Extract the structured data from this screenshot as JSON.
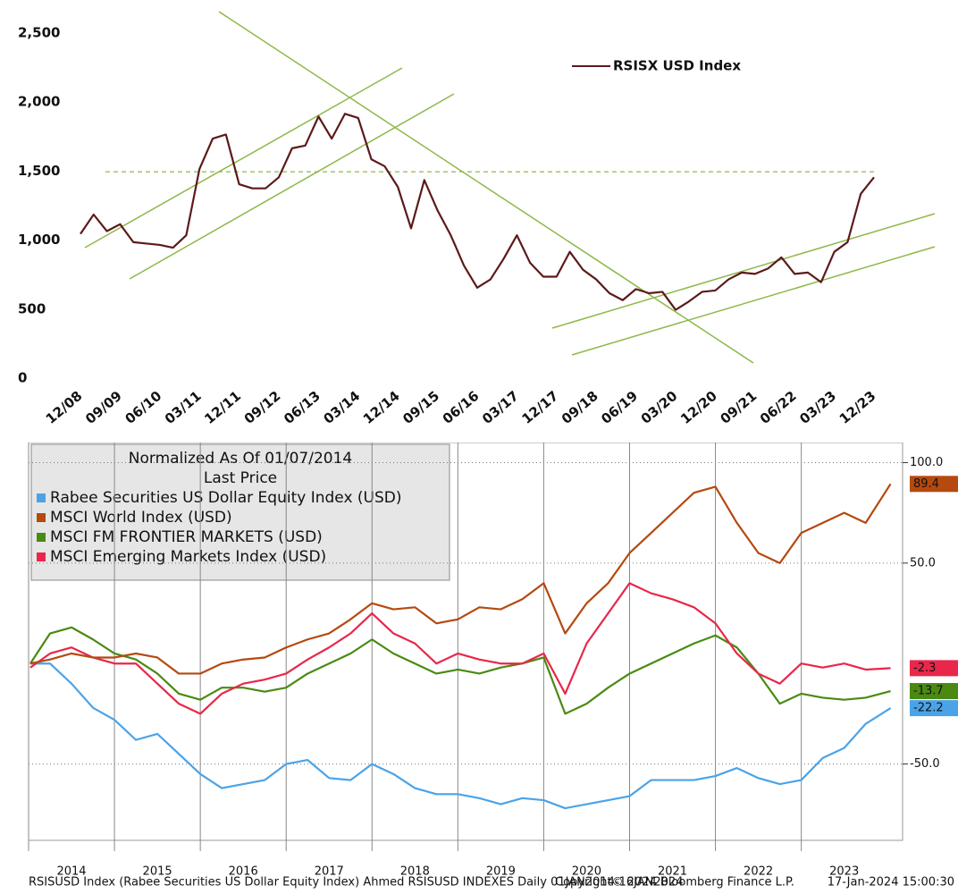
{
  "chart_data": [
    {
      "type": "line",
      "series_name": "RSISX USD Index",
      "color": "#5c1a1a",
      "x": [
        "12/08",
        null,
        null,
        "09/09",
        null,
        null,
        "06/10",
        null,
        null,
        "03/11",
        null,
        null,
        "12/11",
        null,
        null,
        "09/12",
        null,
        null,
        "06/13",
        null,
        null,
        "03/14",
        null,
        null,
        "12/14",
        null,
        null,
        "09/15",
        null,
        null,
        "06/16",
        null,
        null,
        "03/17",
        null,
        null,
        "12/17",
        null,
        null,
        "09/18",
        null,
        null,
        "06/19",
        null,
        null,
        "03/20",
        null,
        null,
        "12/20",
        null,
        null,
        "09/21",
        null,
        null,
        "06/22",
        null,
        null,
        "03/23",
        null,
        null,
        "12/23"
      ],
      "values": [
        1110,
        1250,
        1130,
        1180,
        1050,
        1040,
        1030,
        1010,
        1100,
        1580,
        1800,
        1830,
        1470,
        1440,
        1440,
        1520,
        1730,
        1750,
        1960,
        1800,
        1980,
        1950,
        1650,
        1600,
        1450,
        1150,
        1500,
        1280,
        1100,
        880,
        720,
        780,
        930,
        1100,
        900,
        800,
        800,
        980,
        850,
        780,
        680,
        630,
        710,
        680,
        690,
        560,
        620,
        690,
        700,
        780,
        830,
        820,
        860,
        940,
        820,
        830,
        760,
        980,
        1050,
        1400,
        1520
      ],
      "ylim": [
        0,
        2500
      ],
      "yticks": [
        0,
        500,
        {
          "value": 1000,
          "label": "1,000"
        },
        {
          "value": 1500,
          "label": "1,500"
        },
        {
          "value": 2000,
          "label": "2,000"
        },
        {
          "value": 2500,
          "label": "2,500"
        }
      ],
      "reference_line": 1560
    },
    {
      "type": "line",
      "legend_title": "Normalized As Of 01/07/2014",
      "legend_subtitle": "Last Price",
      "x": [
        2014.02,
        2014.25,
        2014.5,
        2014.75,
        2015,
        2015.25,
        2015.5,
        2015.75,
        2016,
        2016.25,
        2016.5,
        2016.75,
        2017,
        2017.25,
        2017.5,
        2017.75,
        2018,
        2018.25,
        2018.5,
        2018.75,
        2019,
        2019.25,
        2019.5,
        2019.75,
        2020,
        2020.25,
        2020.5,
        2020.75,
        2021,
        2021.25,
        2021.5,
        2021.75,
        2022,
        2022.25,
        2022.5,
        2022.75,
        2023,
        2023.25,
        2023.5,
        2023.75,
        2024.04
      ],
      "xlim": [
        2014,
        2024.18
      ],
      "xticks": [
        2014,
        2015,
        2016,
        2017,
        2018,
        2019,
        2020,
        2021,
        2022,
        2023
      ],
      "ylim": [
        -88,
        110
      ],
      "yticks": [
        {
          "value": 100,
          "label": "100.0"
        },
        {
          "value": 50,
          "label": "50.0"
        },
        {
          "value": -50,
          "label": "-50.0"
        }
      ],
      "series": [
        {
          "name": "Rabee Securities US Dollar Equity Index (USD)",
          "color": "#4aa3e8",
          "values": [
            0,
            0,
            -10,
            -22,
            -28,
            -38,
            -35,
            -45,
            -55,
            -62,
            -60,
            -58,
            -50,
            -48,
            -57,
            -58,
            -50,
            -55,
            -62,
            -65,
            -65,
            -67,
            -70,
            -67,
            -68,
            -72,
            -70,
            -68,
            -66,
            -58,
            -58,
            -58,
            -56,
            -52,
            -57,
            -60,
            -58,
            -47,
            -42,
            -30,
            -22.2
          ]
        },
        {
          "name": "MSCI World Index (USD)",
          "color": "#b5490f",
          "values": [
            0,
            2,
            5,
            3,
            3,
            5,
            3,
            -5,
            -5,
            0,
            2,
            3,
            8,
            12,
            15,
            22,
            30,
            27,
            28,
            20,
            22,
            28,
            27,
            32,
            40,
            15,
            30,
            40,
            55,
            65,
            75,
            85,
            88,
            70,
            55,
            50,
            65,
            70,
            75,
            70,
            89.4
          ]
        },
        {
          "name": "MSCI FM FRONTIER MARKETS (USD)",
          "color": "#4a8a12",
          "values": [
            0,
            15,
            18,
            12,
            5,
            2,
            -5,
            -15,
            -18,
            -12,
            -12,
            -14,
            -12,
            -5,
            0,
            5,
            12,
            5,
            0,
            -5,
            -3,
            -5,
            -2,
            0,
            3,
            -25,
            -20,
            -12,
            -5,
            0,
            5,
            10,
            14,
            8,
            -5,
            -20,
            -15,
            -17,
            -18,
            -17,
            -13.7
          ]
        },
        {
          "name": "MSCI Emerging Markets Index (USD)",
          "color": "#e8274b",
          "values": [
            -2,
            5,
            8,
            3,
            0,
            0,
            -10,
            -20,
            -25,
            -15,
            -10,
            -8,
            -5,
            2,
            8,
            15,
            25,
            15,
            10,
            0,
            5,
            2,
            0,
            0,
            5,
            -15,
            10,
            25,
            40,
            35,
            32,
            28,
            20,
            5,
            -5,
            -10,
            0,
            -2,
            0,
            -3,
            -2.3
          ]
        }
      ]
    }
  ],
  "footer": {
    "left": "RSISUSD Index (Rabee Securities US Dollar Equity Index) Ahmed RSISUSD INDEXES  Daily 01JAN2014-16JAN2024",
    "center": "Copyright© 2024 Bloomberg Finance L.P.",
    "right": "17-Jan-2024 15:00:30"
  }
}
